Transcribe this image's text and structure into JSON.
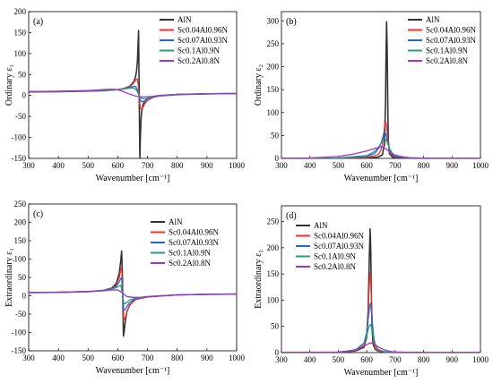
{
  "colors": {
    "AlN": "#333333",
    "Sc0.04": "#e8332f",
    "Sc0.07": "#2367d1",
    "Sc0.1": "#23a07a",
    "Sc0.2": "#a632d3"
  },
  "chart_data": [
    {
      "type": "line",
      "panel": "(a)",
      "xlabel": "Wavenumber [cm⁻¹]",
      "ylabel": "Ordinary ε₁",
      "xlim": [
        300,
        1000
      ],
      "ylim": [
        -150,
        200
      ],
      "xticks": [
        300,
        400,
        500,
        600,
        700,
        800,
        900,
        1000
      ],
      "yticks": [
        -150,
        -100,
        -50,
        0,
        50,
        100,
        150,
        200
      ],
      "legend_position": "top-right",
      "grid": false,
      "series": [
        {
          "name": "AlN",
          "key": "AlN",
          "x": [
            300,
            400,
            500,
            550,
            600,
            620,
            640,
            650,
            655,
            660,
            663,
            666,
            668,
            670,
            672,
            674,
            676,
            678,
            680,
            685,
            690,
            700,
            720,
            750,
            800,
            900,
            1000
          ],
          "y": [
            8.6,
            9.2,
            10.5,
            11.6,
            13.8,
            16.2,
            22,
            29,
            35,
            46,
            58,
            82,
            120,
            155,
            0,
            -150,
            -100,
            -60,
            -40,
            -22,
            -14,
            -7,
            -2,
            0.5,
            2.5,
            4.1,
            4.8
          ]
        },
        {
          "name": "Sc0.04Al0.96N",
          "key": "Sc0.04",
          "x": [
            300,
            400,
            500,
            550,
            600,
            620,
            640,
            650,
            655,
            660,
            665,
            668,
            672,
            676,
            680,
            685,
            690,
            700,
            720,
            750,
            800,
            900,
            1000
          ],
          "y": [
            8.8,
            9.4,
            10.8,
            12,
            14,
            16,
            21,
            27,
            32,
            37,
            40,
            30,
            -5,
            -30,
            -33,
            -28,
            -20,
            -12,
            -4,
            0,
            2.5,
            4.1,
            4.8
          ]
        },
        {
          "name": "Sc0.07Al0.93N",
          "key": "Sc0.07",
          "x": [
            300,
            400,
            500,
            550,
            600,
            620,
            640,
            650,
            655,
            660,
            665,
            670,
            675,
            680,
            690,
            700,
            720,
            750,
            800,
            900,
            1000
          ],
          "y": [
            9,
            9.6,
            11,
            12.1,
            14,
            15.5,
            19,
            21,
            22,
            21.5,
            15,
            3,
            -10,
            -15,
            -13,
            -8,
            -3,
            0,
            2.5,
            4,
            4.8
          ]
        },
        {
          "name": "Sc0.1Al0.9N",
          "key": "Sc0.1",
          "x": [
            300,
            400,
            500,
            550,
            600,
            620,
            640,
            650,
            655,
            660,
            665,
            670,
            675,
            680,
            690,
            700,
            720,
            750,
            800,
            900,
            1000
          ],
          "y": [
            9.2,
            9.8,
            11.3,
            12.3,
            14,
            15.5,
            17.5,
            18,
            17.5,
            15,
            10,
            3,
            -3,
            -7,
            -8,
            -6,
            -2.5,
            0.3,
            2.5,
            4,
            4.7
          ]
        },
        {
          "name": "Sc0.2Al0.8N",
          "key": "Sc0.2",
          "x": [
            300,
            400,
            500,
            550,
            580,
            600,
            620,
            640,
            660,
            680,
            700,
            750,
            800,
            900,
            1000
          ],
          "y": [
            9.5,
            10.3,
            12,
            14,
            15.2,
            14,
            9,
            3,
            -1.5,
            -3.5,
            -3,
            -0.8,
            1.5,
            3.6,
            4.5
          ]
        }
      ]
    },
    {
      "type": "line",
      "panel": "(b)",
      "xlabel": "Wavenumber [cm⁻¹]",
      "ylabel": "Ordinary ε₂",
      "xlim": [
        300,
        1000
      ],
      "ylim": [
        0,
        320
      ],
      "xticks": [
        300,
        400,
        500,
        600,
        700,
        800,
        900,
        1000
      ],
      "yticks": [
        0,
        50,
        100,
        150,
        200,
        250,
        300
      ],
      "legend_position": "top-right",
      "grid": false,
      "series": [
        {
          "name": "AlN",
          "key": "AlN",
          "x": [
            300,
            500,
            600,
            640,
            655,
            662,
            666,
            668,
            670,
            672,
            674,
            676,
            680,
            690,
            700,
            750,
            800,
            1000
          ],
          "y": [
            0,
            0.3,
            1,
            3,
            8,
            30,
            120,
            230,
            298,
            230,
            120,
            40,
            10,
            3,
            1,
            0.3,
            0,
            0
          ]
        },
        {
          "name": "Sc0.04Al0.96N",
          "key": "Sc0.04",
          "x": [
            300,
            500,
            600,
            640,
            650,
            655,
            660,
            664,
            667,
            670,
            674,
            680,
            690,
            700,
            750,
            800,
            1000
          ],
          "y": [
            0,
            0.5,
            2,
            8,
            18,
            30,
            55,
            75,
            80,
            70,
            45,
            18,
            6,
            3,
            0.6,
            0,
            0
          ]
        },
        {
          "name": "Sc0.07Al0.93N",
          "key": "Sc0.07",
          "x": [
            300,
            500,
            600,
            630,
            645,
            655,
            660,
            664,
            668,
            672,
            680,
            690,
            700,
            750,
            800,
            1000
          ],
          "y": [
            0,
            0.8,
            4,
            12,
            25,
            42,
            55,
            58,
            52,
            40,
            20,
            8,
            4,
            0.8,
            0,
            0
          ]
        },
        {
          "name": "Sc0.1Al0.9N",
          "key": "Sc0.1",
          "x": [
            300,
            500,
            600,
            630,
            645,
            655,
            660,
            665,
            670,
            680,
            690,
            700,
            750,
            800,
            1000
          ],
          "y": [
            0,
            1,
            6,
            16,
            28,
            38,
            42,
            43,
            38,
            22,
            11,
            6,
            1.2,
            0,
            0
          ]
        },
        {
          "name": "Sc0.2Al0.8N",
          "key": "Sc0.2",
          "x": [
            300,
            400,
            500,
            550,
            600,
            630,
            650,
            660,
            670,
            680,
            700,
            730,
            750,
            800,
            900,
            1000
          ],
          "y": [
            0,
            1,
            4,
            9,
            16,
            22,
            25,
            24,
            20,
            14,
            7,
            3,
            1.5,
            0.5,
            0,
            0
          ]
        }
      ]
    },
    {
      "type": "line",
      "panel": "(c)",
      "xlabel": "Wavenumber [cm⁻¹]",
      "ylabel": "Extraordinary ε₁",
      "xlim": [
        300,
        1000
      ],
      "ylim": [
        -150,
        250
      ],
      "xticks": [
        300,
        400,
        500,
        600,
        700,
        800,
        900,
        1000
      ],
      "yticks": [
        -150,
        -100,
        -50,
        0,
        50,
        100,
        150,
        200,
        250
      ],
      "legend_position": "top-right",
      "grid": false,
      "series": [
        {
          "name": "AlN",
          "key": "AlN",
          "x": [
            300,
            400,
            500,
            550,
            580,
            595,
            605,
            610,
            613,
            616,
            619,
            622,
            625,
            630,
            640,
            660,
            700,
            800,
            900,
            1000
          ],
          "y": [
            8.6,
            9.3,
            11.2,
            14.5,
            21,
            34,
            62,
            95,
            122,
            40,
            -110,
            -95,
            -70,
            -45,
            -25,
            -10,
            -3,
            2.5,
            4,
            4.6
          ]
        },
        {
          "name": "Sc0.04Al0.96N",
          "key": "Sc0.04",
          "x": [
            300,
            400,
            500,
            550,
            580,
            595,
            605,
            610,
            613,
            616,
            620,
            625,
            630,
            640,
            660,
            700,
            800,
            900,
            1000
          ],
          "y": [
            8.7,
            9.4,
            11.3,
            14.5,
            20,
            30,
            50,
            70,
            78,
            20,
            -65,
            -60,
            -45,
            -25,
            -10,
            -3,
            2.5,
            4,
            4.6
          ]
        },
        {
          "name": "Sc0.07Al0.93N",
          "key": "Sc0.07",
          "x": [
            300,
            400,
            500,
            550,
            580,
            595,
            605,
            610,
            613,
            616,
            620,
            625,
            630,
            640,
            660,
            700,
            800,
            900,
            1000
          ],
          "y": [
            8.8,
            9.5,
            11.4,
            14.4,
            19,
            26,
            38,
            47,
            49,
            10,
            -40,
            -38,
            -30,
            -18,
            -8,
            -2.5,
            2.5,
            4,
            4.6
          ]
        },
        {
          "name": "Sc0.1Al0.9N",
          "key": "Sc0.1",
          "x": [
            300,
            400,
            500,
            550,
            580,
            595,
            605,
            610,
            615,
            620,
            625,
            630,
            640,
            660,
            700,
            800,
            900,
            1000
          ],
          "y": [
            8.9,
            9.6,
            11.5,
            14,
            18,
            22,
            27,
            28,
            8,
            -20,
            -22,
            -18,
            -12,
            -6,
            -2,
            2.5,
            4,
            4.6
          ]
        },
        {
          "name": "Sc0.2Al0.8N",
          "key": "Sc0.2",
          "x": [
            300,
            400,
            500,
            550,
            580,
            600,
            615,
            630,
            650,
            680,
            700,
            750,
            800,
            900,
            1000
          ],
          "y": [
            9,
            9.8,
            11.6,
            13.5,
            15.5,
            16,
            8,
            -2,
            -4.5,
            -4,
            -2.5,
            0,
            2,
            3.8,
            4.5
          ]
        }
      ]
    },
    {
      "type": "line",
      "panel": "(d)",
      "xlabel": "Wavenumber [cm⁻¹]",
      "ylabel": "Extraordinary ε₂",
      "xlim": [
        300,
        1000
      ],
      "ylim": [
        0,
        280
      ],
      "xticks": [
        300,
        400,
        500,
        600,
        700,
        800,
        900,
        1000
      ],
      "yticks": [
        0,
        50,
        100,
        150,
        200,
        250
      ],
      "legend_position": "top-left",
      "grid": false,
      "series": [
        {
          "name": "AlN",
          "key": "AlN",
          "x": [
            300,
            500,
            560,
            590,
            600,
            605,
            609,
            612,
            614,
            616,
            619,
            623,
            630,
            640,
            660,
            700,
            800,
            1000
          ],
          "y": [
            0,
            0.5,
            3,
            10,
            30,
            80,
            180,
            236,
            200,
            120,
            40,
            15,
            6,
            3,
            1,
            0.3,
            0,
            0
          ]
        },
        {
          "name": "Sc0.04Al0.96N",
          "key": "Sc0.04",
          "x": [
            300,
            500,
            560,
            590,
            600,
            605,
            609,
            612,
            614,
            617,
            620,
            625,
            630,
            640,
            660,
            700,
            800,
            1000
          ],
          "y": [
            0,
            0.6,
            4,
            14,
            35,
            75,
            130,
            152,
            140,
            95,
            50,
            18,
            8,
            4,
            1.2,
            0.3,
            0,
            0
          ]
        },
        {
          "name": "Sc0.07Al0.93N",
          "key": "Sc0.07",
          "x": [
            300,
            500,
            560,
            590,
            600,
            605,
            610,
            613,
            616,
            620,
            625,
            630,
            640,
            660,
            700,
            800,
            1000
          ],
          "y": [
            0,
            0.7,
            5,
            18,
            38,
            62,
            88,
            94,
            82,
            55,
            28,
            14,
            6,
            1.5,
            0.4,
            0,
            0
          ]
        },
        {
          "name": "Sc0.1Al0.9N",
          "key": "Sc0.1",
          "x": [
            300,
            500,
            560,
            590,
            600,
            605,
            610,
            613,
            616,
            620,
            626,
            632,
            640,
            660,
            700,
            800,
            1000
          ],
          "y": [
            0,
            0.8,
            5,
            18,
            32,
            44,
            52,
            54,
            50,
            38,
            22,
            12,
            6,
            2,
            0.5,
            0,
            0
          ]
        },
        {
          "name": "Sc0.2Al0.8N",
          "key": "Sc0.2",
          "x": [
            300,
            500,
            540,
            570,
            590,
            600,
            610,
            615,
            620,
            630,
            640,
            660,
            680,
            700,
            750,
            800,
            1000
          ],
          "y": [
            0,
            1,
            3,
            7,
            12,
            15,
            18,
            18.5,
            18,
            15,
            11,
            5.5,
            2.5,
            1.2,
            0.4,
            0,
            0
          ]
        }
      ]
    }
  ]
}
